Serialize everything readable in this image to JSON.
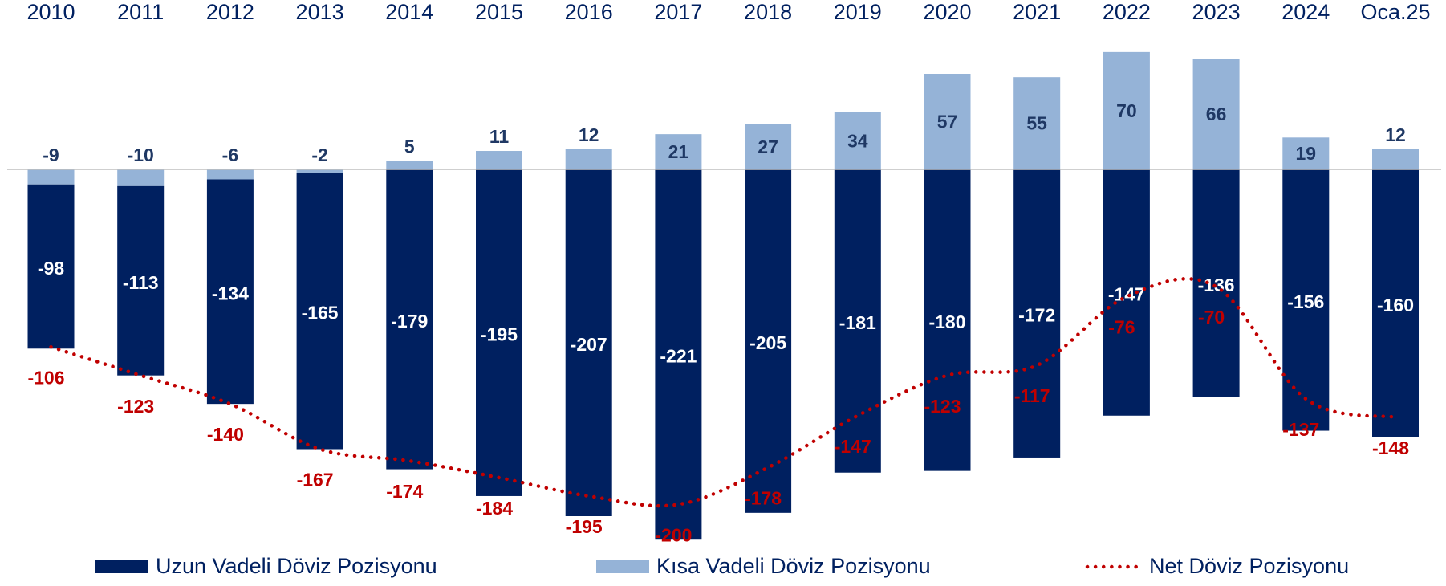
{
  "chart_data": {
    "type": "bar",
    "categories": [
      "2010",
      "2011",
      "2012",
      "2013",
      "2014",
      "2015",
      "2016",
      "2017",
      "2018",
      "2019",
      "2020",
      "2021",
      "2022",
      "2023",
      "2024",
      "Oca.25"
    ],
    "series": [
      {
        "name": "Uzun Vadeli Döviz Pozisyonu",
        "color": "#002060",
        "values": [
          -98,
          -113,
          -134,
          -165,
          -179,
          -195,
          -207,
          -221,
          -205,
          -181,
          -180,
          -172,
          -147,
          -136,
          -156,
          -160
        ]
      },
      {
        "name": "Kısa Vadeli Döviz Pozisyonu",
        "color": "#95b3d7",
        "values": [
          -9,
          -10,
          -6,
          -2,
          5,
          11,
          12,
          21,
          27,
          34,
          57,
          55,
          70,
          66,
          19,
          12
        ]
      },
      {
        "name": "Net Döviz Pozisyonu",
        "color": "#c00000",
        "type": "line",
        "values": [
          -106,
          -123,
          -140,
          -167,
          -174,
          -184,
          -195,
          -200,
          -178,
          -147,
          -123,
          -117,
          -76,
          -70,
          -137,
          -148
        ]
      }
    ],
    "ylim": [
      -230,
      80
    ]
  }
}
